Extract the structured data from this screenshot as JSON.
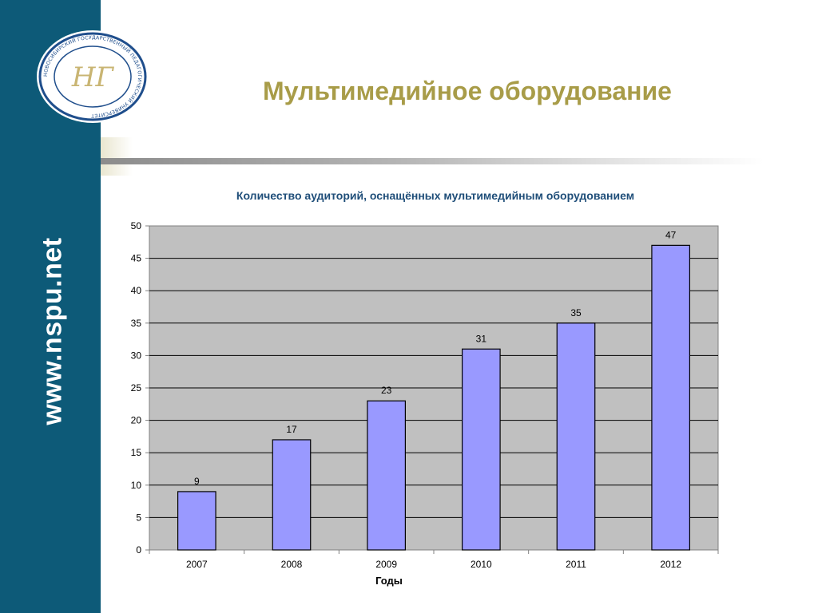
{
  "site_url": "www.nspu.net",
  "slide_title": "Мультимедийное оборудование",
  "logo": {
    "ring_text": "НОВОСИБИРСКИЙ ГОСУДАРСТВЕННЫЙ ПЕДАГОГИЧЕСКИЙ УНИВЕРСИТЕТ",
    "monogram": "НГ"
  },
  "colors": {
    "sidebar": "#0d5a78",
    "title": "#a89c48",
    "chart_title": "#1f4e79",
    "bar_fill": "#9999ff",
    "plot_bg": "#c0c0c0"
  },
  "chart_data": {
    "type": "bar",
    "title": "Количество аудиторий, оснащённых мультимедийным оборудованием",
    "xlabel": "Годы",
    "ylabel": "",
    "categories": [
      "2007",
      "2008",
      "2009",
      "2010",
      "2011",
      "2012"
    ],
    "values": [
      9,
      17,
      23,
      31,
      35,
      47
    ],
    "ylim": [
      0,
      50
    ],
    "yticks": [
      0,
      5,
      10,
      15,
      20,
      25,
      30,
      35,
      40,
      45,
      50
    ],
    "grid": true,
    "legend": "none",
    "data_labels": true
  }
}
